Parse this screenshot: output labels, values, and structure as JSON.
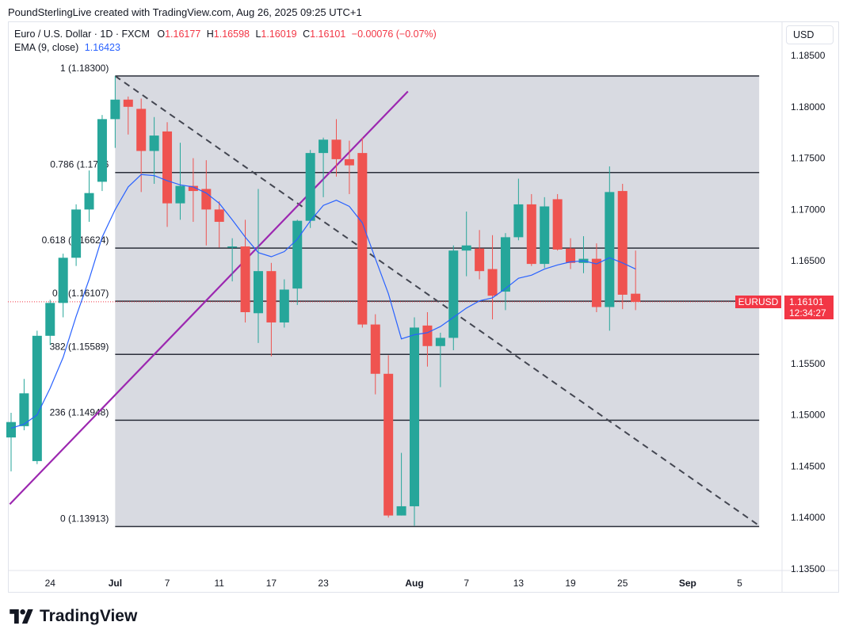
{
  "header": {
    "credit": "PoundSterlingLive created with TradingView.com, Aug 26, 2025 09:25 UTC+1"
  },
  "legend": {
    "symbol": "Euro / U.S. Dollar · 1D · FXCM",
    "o_label": "O",
    "o_value": "1.16177",
    "h_label": "H",
    "h_value": "1.16598",
    "l_label": "L",
    "l_value": "1.16019",
    "c_label": "C",
    "c_value": "1.16101",
    "change": "−0.00076 (−0.07%)",
    "ema_label": "EMA (9, close)",
    "ema_value": "1.16423"
  },
  "currency": "USD",
  "last_price": {
    "symbol": "EURUSD",
    "price": "1.16101",
    "countdown": "12:34:27"
  },
  "brand": {
    "name": "TradingView"
  },
  "colors": {
    "up": "#26a69a",
    "down": "#ef5350",
    "ema": "#2962ff",
    "trendline": "#9c27b0",
    "fib_bg": "#d1d4dc",
    "accent": "#f23645"
  },
  "chart_data": {
    "type": "candlestick",
    "title": "Euro / U.S. Dollar · 1D · FXCM",
    "ylim": [
      1.135,
      1.1875
    ],
    "y_ticks": [
      "1.18500",
      "1.18000",
      "1.17500",
      "1.17000",
      "1.16500",
      "1.16000",
      "1.15500",
      "1.15000",
      "1.14500",
      "1.14000",
      "1.13500"
    ],
    "x_ticks": [
      {
        "label": "24",
        "i": 3
      },
      {
        "label": "Jul",
        "i": 8
      },
      {
        "label": "7",
        "i": 12
      },
      {
        "label": "11",
        "i": 16
      },
      {
        "label": "17",
        "i": 20
      },
      {
        "label": "23",
        "i": 24
      },
      {
        "label": "Aug",
        "i": 31
      },
      {
        "label": "7",
        "i": 35
      },
      {
        "label": "13",
        "i": 39
      },
      {
        "label": "19",
        "i": 43
      },
      {
        "label": "25",
        "i": 47
      },
      {
        "label": "Sep",
        "i": 52
      },
      {
        "label": "5",
        "i": 56
      }
    ],
    "candles": [
      {
        "o": 1.1478,
        "h": 1.1502,
        "l": 1.1445,
        "c": 1.1493
      },
      {
        "o": 1.1489,
        "h": 1.1535,
        "l": 1.1485,
        "c": 1.1521
      },
      {
        "o": 1.1455,
        "h": 1.1582,
        "l": 1.1452,
        "c": 1.1577
      },
      {
        "o": 1.1577,
        "h": 1.1612,
        "l": 1.1568,
        "c": 1.1609
      },
      {
        "o": 1.1609,
        "h": 1.1657,
        "l": 1.1595,
        "c": 1.1653
      },
      {
        "o": 1.1653,
        "h": 1.1705,
        "l": 1.1645,
        "c": 1.17
      },
      {
        "o": 1.17,
        "h": 1.1738,
        "l": 1.1688,
        "c": 1.1716
      },
      {
        "o": 1.1727,
        "h": 1.1792,
        "l": 1.1718,
        "c": 1.1788
      },
      {
        "o": 1.1788,
        "h": 1.183,
        "l": 1.176,
        "c": 1.1807
      },
      {
        "o": 1.1807,
        "h": 1.181,
        "l": 1.1773,
        "c": 1.18
      },
      {
        "o": 1.1798,
        "h": 1.1808,
        "l": 1.1717,
        "c": 1.1757
      },
      {
        "o": 1.1757,
        "h": 1.179,
        "l": 1.1725,
        "c": 1.1772
      },
      {
        "o": 1.1776,
        "h": 1.1785,
        "l": 1.1683,
        "c": 1.1706
      },
      {
        "o": 1.1706,
        "h": 1.1765,
        "l": 1.169,
        "c": 1.1723
      },
      {
        "o": 1.1723,
        "h": 1.175,
        "l": 1.1688,
        "c": 1.1718
      },
      {
        "o": 1.172,
        "h": 1.1748,
        "l": 1.1665,
        "c": 1.17
      },
      {
        "o": 1.17,
        "h": 1.1708,
        "l": 1.1663,
        "c": 1.1688
      },
      {
        "o": 1.1664,
        "h": 1.1672,
        "l": 1.163,
        "c": 1.1664
      },
      {
        "o": 1.1664,
        "h": 1.169,
        "l": 1.159,
        "c": 1.16
      },
      {
        "o": 1.1599,
        "h": 1.172,
        "l": 1.157,
        "c": 1.164
      },
      {
        "o": 1.164,
        "h": 1.1648,
        "l": 1.1557,
        "c": 1.159
      },
      {
        "o": 1.159,
        "h": 1.1632,
        "l": 1.1585,
        "c": 1.1622
      },
      {
        "o": 1.1623,
        "h": 1.169,
        "l": 1.1607,
        "c": 1.1689
      },
      {
        "o": 1.1689,
        "h": 1.1758,
        "l": 1.1682,
        "c": 1.1755
      },
      {
        "o": 1.1755,
        "h": 1.177,
        "l": 1.1712,
        "c": 1.1768
      },
      {
        "o": 1.1768,
        "h": 1.1788,
        "l": 1.1732,
        "c": 1.1749
      },
      {
        "o": 1.1749,
        "h": 1.1767,
        "l": 1.1715,
        "c": 1.1743
      },
      {
        "o": 1.1755,
        "h": 1.177,
        "l": 1.1585,
        "c": 1.1588
      },
      {
        "o": 1.1588,
        "h": 1.1598,
        "l": 1.152,
        "c": 1.154
      },
      {
        "o": 1.154,
        "h": 1.1558,
        "l": 1.14,
        "c": 1.1402
      },
      {
        "o": 1.1402,
        "h": 1.1463,
        "l": 1.1402,
        "c": 1.1411
      },
      {
        "o": 1.1411,
        "h": 1.1595,
        "l": 1.1392,
        "c": 1.1585
      },
      {
        "o": 1.1587,
        "h": 1.16,
        "l": 1.1547,
        "c": 1.1567
      },
      {
        "o": 1.1567,
        "h": 1.158,
        "l": 1.1527,
        "c": 1.1575
      },
      {
        "o": 1.1575,
        "h": 1.1665,
        "l": 1.1563,
        "c": 1.166
      },
      {
        "o": 1.166,
        "h": 1.1698,
        "l": 1.1635,
        "c": 1.1665
      },
      {
        "o": 1.1662,
        "h": 1.168,
        "l": 1.1632,
        "c": 1.164
      },
      {
        "o": 1.1642,
        "h": 1.1675,
        "l": 1.1593,
        "c": 1.1616
      },
      {
        "o": 1.162,
        "h": 1.1677,
        "l": 1.1602,
        "c": 1.1673
      },
      {
        "o": 1.1673,
        "h": 1.173,
        "l": 1.167,
        "c": 1.1705
      },
      {
        "o": 1.1705,
        "h": 1.1715,
        "l": 1.1645,
        "c": 1.1647
      },
      {
        "o": 1.1647,
        "h": 1.1712,
        "l": 1.1643,
        "c": 1.1703
      },
      {
        "o": 1.171,
        "h": 1.1715,
        "l": 1.166,
        "c": 1.1661
      },
      {
        "o": 1.1662,
        "h": 1.1672,
        "l": 1.1642,
        "c": 1.1648
      },
      {
        "o": 1.1648,
        "h": 1.1674,
        "l": 1.1638,
        "c": 1.1652
      },
      {
        "o": 1.1652,
        "h": 1.1667,
        "l": 1.16,
        "c": 1.1605
      },
      {
        "o": 1.1605,
        "h": 1.1742,
        "l": 1.1582,
        "c": 1.1717
      },
      {
        "o": 1.1718,
        "h": 1.1725,
        "l": 1.1603,
        "c": 1.1617
      },
      {
        "o": 1.1618,
        "h": 1.166,
        "l": 1.1602,
        "c": 1.161
      }
    ],
    "ema": {
      "name": "EMA (9, close)",
      "values": [
        1.1487,
        1.1491,
        1.15,
        1.1526,
        1.1556,
        1.1596,
        1.1632,
        1.1673,
        1.17,
        1.1722,
        1.1734,
        1.1733,
        1.1728,
        1.1724,
        1.1722,
        1.1716,
        1.1706,
        1.169,
        1.1673,
        1.1658,
        1.1654,
        1.1659,
        1.1671,
        1.1689,
        1.1704,
        1.1709,
        1.1703,
        1.1687,
        1.1652,
        1.1618,
        1.1574,
        1.1578,
        1.158,
        1.1586,
        1.1595,
        1.1604,
        1.1611,
        1.1614,
        1.1623,
        1.1633,
        1.1636,
        1.1642,
        1.1646,
        1.1649,
        1.165,
        1.1647,
        1.1653,
        1.1648,
        1.1642
      ]
    },
    "fib_levels": [
      {
        "ratio": "1",
        "price": 1.183,
        "label": "1 (1.18300)"
      },
      {
        "ratio": "0.786",
        "price": 1.1736,
        "label": "0.786 (1.1736"
      },
      {
        "ratio": "0.618",
        "price": 1.16624,
        "label": "0.618 (1.16624)"
      },
      {
        "ratio": "0.5",
        "price": 1.16107,
        "label": "0.5 (1.16107)"
      },
      {
        "ratio": "0.382",
        "price": 1.15589,
        "label": "382 (1.15589)"
      },
      {
        "ratio": "0.236",
        "price": 1.14948,
        "label": "236 (1.14948)"
      },
      {
        "ratio": "0",
        "price": 1.13913,
        "label": "0 (1.13913)"
      }
    ],
    "fib_range": {
      "start_i": 8,
      "end_i": 57.5
    },
    "trendline": {
      "from": {
        "i": -0.1,
        "p": 1.1413
      },
      "to": {
        "i": 30.5,
        "p": 1.1815
      }
    },
    "dashed_line": {
      "from": {
        "i": 8,
        "p": 1.183
      },
      "to": {
        "i": 57.4,
        "p": 1.1393
      }
    },
    "last_close": 1.16101
  }
}
